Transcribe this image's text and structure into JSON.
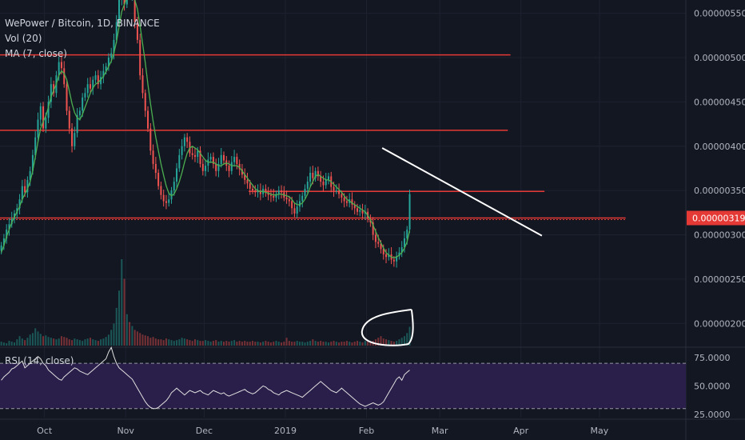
{
  "header": {
    "title": "WePower / Bitcoin, 1D, BINANCE",
    "vol_label": "Vol (20)",
    "ma_label": "MA (7, close)",
    "rsi_label": "RSI (14, close)"
  },
  "colors": {
    "background": "#131722",
    "up": "#26a69a",
    "down": "#ef5350",
    "ma": "#4caf50",
    "level": "#e53935",
    "trend": "#ffffff",
    "rsi_line": "#e0e0e0",
    "rsi_band": "#2a1f4a",
    "price_badge": "#e53935"
  },
  "chart_data": {
    "type": "candlestick",
    "title": "WePower / Bitcoin, 1D, BINANCE",
    "price_axis": {
      "ticks": [
        {
          "label": "0.00000550",
          "value": 550
        },
        {
          "label": "0.00000500",
          "value": 500
        },
        {
          "label": "0.00000450",
          "value": 450
        },
        {
          "label": "0.00000400",
          "value": 400
        },
        {
          "label": "0.00000350",
          "value": 350
        },
        {
          "label": "0.00000300",
          "value": 300
        },
        {
          "label": "0.00000250",
          "value": 250
        },
        {
          "label": "0.00000200",
          "value": 200
        }
      ],
      "unit_scale": "1e-8 BTC",
      "range": [
        175,
        565
      ]
    },
    "current_price": {
      "label": "0.00000319",
      "value": 319
    },
    "time_axis": {
      "labels": [
        {
          "label": "Oct",
          "day": 17
        },
        {
          "label": "Nov",
          "day": 48
        },
        {
          "label": "Dec",
          "day": 78
        },
        {
          "label": "2019",
          "day": 109
        },
        {
          "label": "Feb",
          "day": 140
        },
        {
          "label": "Mar",
          "day": 168
        },
        {
          "label": "Apr",
          "day": 199
        },
        {
          "label": "May",
          "day": 229
        }
      ],
      "range": [
        0,
        262
      ]
    },
    "close": [
      288,
      296,
      306,
      312,
      318,
      324,
      330,
      340,
      355,
      348,
      362,
      372,
      390,
      410,
      430,
      445,
      420,
      432,
      450,
      470,
      460,
      480,
      495,
      488,
      470,
      440,
      420,
      400,
      415,
      435,
      440,
      455,
      460,
      470,
      465,
      475,
      480,
      470,
      478,
      485,
      490,
      500,
      505,
      520,
      540,
      565,
      580,
      560,
      575,
      570,
      580,
      540,
      520,
      480,
      460,
      440,
      420,
      395,
      380,
      370,
      355,
      345,
      338,
      336,
      340,
      350,
      360,
      375,
      390,
      400,
      410,
      405,
      392,
      390,
      388,
      395,
      380,
      372,
      378,
      385,
      388,
      380,
      372,
      380,
      390,
      384,
      378,
      372,
      382,
      388,
      380,
      374,
      368,
      362,
      358,
      352,
      350,
      348,
      350,
      346,
      352,
      348,
      345,
      344,
      342,
      346,
      350,
      348,
      342,
      340,
      338,
      330,
      324,
      332,
      338,
      344,
      352,
      360,
      370,
      364,
      372,
      366,
      360,
      356,
      362,
      366,
      354,
      350,
      350,
      346,
      342,
      338,
      336,
      340,
      334,
      330,
      326,
      328,
      324,
      326,
      318,
      314,
      300,
      292,
      290,
      284,
      278,
      275,
      278,
      272,
      270,
      276,
      280,
      286,
      296,
      306,
      346
    ],
    "ma7": [
      280,
      288,
      298,
      306,
      314,
      320,
      326,
      332,
      340,
      346,
      352,
      360,
      372,
      388,
      405,
      420,
      428,
      434,
      444,
      456,
      463,
      470,
      480,
      485,
      482,
      475,
      462,
      448,
      438,
      432,
      430,
      436,
      444,
      452,
      460,
      466,
      470,
      472,
      475,
      479,
      484,
      490,
      496,
      505,
      518,
      535,
      552,
      560,
      568,
      570,
      572,
      565,
      555,
      536,
      515,
      494,
      470,
      448,
      428,
      410,
      395,
      380,
      367,
      355,
      347,
      344,
      346,
      352,
      360,
      370,
      382,
      392,
      398,
      400,
      398,
      396,
      392,
      388,
      384,
      382,
      382,
      382,
      380,
      378,
      378,
      380,
      381,
      380,
      378,
      378,
      378,
      376,
      372,
      368,
      364,
      360,
      356,
      352,
      350,
      349,
      349,
      348,
      347,
      346,
      345,
      345,
      346,
      346,
      345,
      344,
      343,
      340,
      336,
      334,
      334,
      336,
      340,
      346,
      354,
      360,
      366,
      368,
      366,
      364,
      362,
      362,
      360,
      357,
      354,
      351,
      348,
      344,
      340,
      338,
      336,
      334,
      332,
      330,
      328,
      326,
      322,
      317,
      311,
      304,
      297,
      291,
      285,
      280,
      277,
      275,
      274,
      275,
      277,
      280,
      285,
      292,
      305
    ],
    "volume": [
      5,
      4,
      3,
      6,
      5,
      4,
      8,
      12,
      9,
      7,
      10,
      14,
      16,
      22,
      18,
      15,
      12,
      13,
      11,
      10,
      9,
      8,
      9,
      12,
      11,
      10,
      8,
      7,
      9,
      8,
      7,
      6,
      8,
      9,
      10,
      8,
      7,
      6,
      8,
      9,
      11,
      14,
      20,
      28,
      48,
      70,
      110,
      85,
      40,
      30,
      25,
      20,
      18,
      16,
      14,
      13,
      12,
      10,
      11,
      9,
      8,
      8,
      7,
      9,
      8,
      7,
      6,
      7,
      8,
      10,
      9,
      8,
      7,
      6,
      8,
      7,
      6,
      6,
      7,
      6,
      5,
      6,
      7,
      5,
      6,
      5,
      6,
      5,
      6,
      7,
      5,
      6,
      5,
      6,
      5,
      5,
      6,
      5,
      5,
      4,
      5,
      6,
      5,
      4,
      5,
      6,
      5,
      4,
      5,
      10,
      6,
      5,
      5,
      6,
      5,
      5,
      4,
      5,
      6,
      8,
      6,
      5,
      6,
      5,
      5,
      4,
      5,
      6,
      5,
      4,
      5,
      5,
      6,
      5,
      4,
      5,
      6,
      5,
      4,
      6,
      7,
      5,
      6,
      8,
      10,
      12,
      9,
      8,
      7,
      6,
      5,
      6,
      8,
      10,
      12,
      16,
      24
    ],
    "rsi": [
      55,
      58,
      60,
      62,
      65,
      66,
      68,
      70,
      72,
      66,
      68,
      70,
      72,
      74,
      76,
      74,
      70,
      68,
      64,
      62,
      60,
      58,
      56,
      55,
      58,
      60,
      62,
      64,
      66,
      65,
      63,
      62,
      61,
      60,
      62,
      64,
      66,
      68,
      70,
      72,
      74,
      80,
      84,
      76,
      70,
      66,
      64,
      62,
      60,
      58,
      56,
      52,
      48,
      44,
      40,
      36,
      33,
      31,
      30,
      30,
      31,
      33,
      35,
      37,
      40,
      44,
      46,
      48,
      46,
      44,
      42,
      44,
      46,
      45,
      44,
      45,
      46,
      44,
      43,
      42,
      44,
      46,
      45,
      44,
      43,
      44,
      42,
      41,
      42,
      43,
      44,
      45,
      46,
      47,
      45,
      44,
      43,
      44,
      46,
      48,
      50,
      49,
      47,
      46,
      44,
      43,
      42,
      44,
      45,
      46,
      45,
      44,
      43,
      42,
      41,
      40,
      42,
      44,
      46,
      48,
      50,
      52,
      54,
      52,
      50,
      48,
      46,
      45,
      44,
      46,
      48,
      46,
      44,
      42,
      40,
      38,
      36,
      34,
      33,
      32,
      33,
      34,
      35,
      34,
      33,
      34,
      36,
      40,
      44,
      48,
      52,
      56,
      58,
      55,
      60,
      62,
      64
    ],
    "rsi_axis": {
      "ticks": [
        {
          "label": "75.0000",
          "value": 75
        },
        {
          "label": "50.0000",
          "value": 50
        },
        {
          "label": "25.0000",
          "value": 25
        }
      ],
      "band": [
        30,
        70
      ]
    },
    "levels": [
      {
        "value": 503,
        "day_from": 0,
        "day_to": 195
      },
      {
        "value": 418,
        "day_from": 0,
        "day_to": 194
      },
      {
        "value": 349,
        "day_from": 95,
        "day_to": 208
      },
      {
        "value": 319,
        "day_from": 0,
        "day_to": 239
      }
    ],
    "trendline": {
      "from": {
        "day": 146,
        "value": 398
      },
      "to": {
        "day": 207,
        "value": 299
      }
    }
  }
}
